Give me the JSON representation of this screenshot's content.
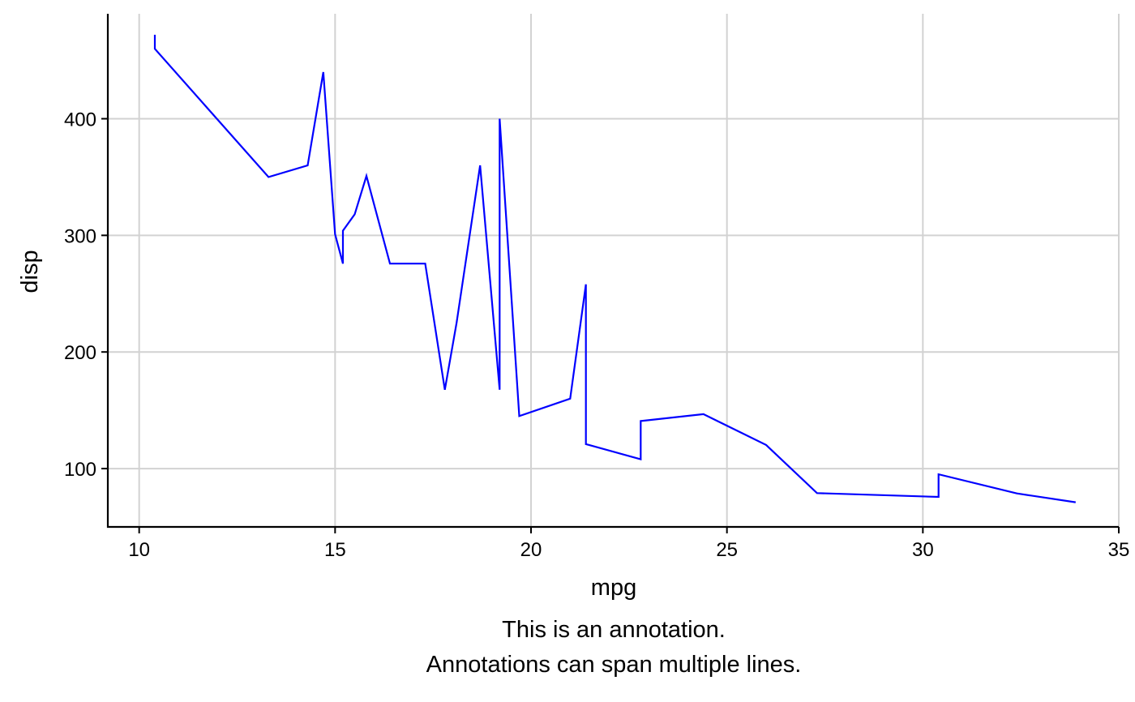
{
  "chart_data": {
    "type": "line",
    "title": "",
    "xlabel": "mpg",
    "ylabel": "disp",
    "xlim": [
      9.2,
      35
    ],
    "ylim": [
      50,
      490
    ],
    "x_ticks": [
      10,
      15,
      20,
      25,
      30,
      35
    ],
    "y_ticks": [
      100,
      200,
      300,
      400
    ],
    "grid": true,
    "line_color": "#0000ff",
    "x": [
      10.4,
      10.4,
      13.3,
      14.3,
      14.7,
      15.0,
      15.2,
      15.2,
      15.5,
      15.8,
      16.4,
      17.3,
      17.8,
      18.1,
      18.7,
      19.2,
      19.2,
      19.7,
      21.0,
      21.0,
      21.4,
      21.4,
      21.5,
      22.8,
      22.8,
      24.4,
      26.0,
      27.3,
      30.4,
      30.4,
      32.4,
      33.9
    ],
    "values": [
      472,
      460,
      350,
      360,
      440,
      301,
      275.8,
      304,
      318,
      351,
      275.8,
      275.8,
      167.6,
      225,
      360,
      167.6,
      400,
      145,
      160,
      160,
      258,
      121,
      120.1,
      108,
      140.8,
      146.7,
      120.3,
      79,
      75.7,
      95.1,
      78.7,
      71.1
    ],
    "caption": [
      "This is an annotation.",
      "Annotations can span multiple lines."
    ]
  }
}
